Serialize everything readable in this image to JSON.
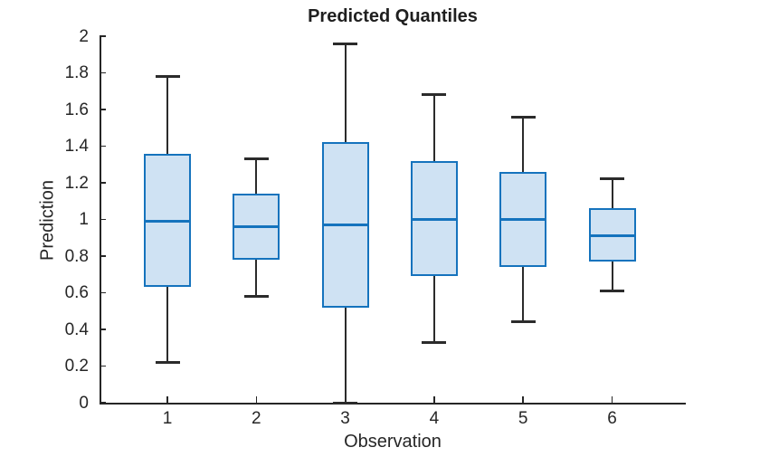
{
  "chart_data": {
    "type": "box",
    "title": "Predicted Quantiles",
    "xlabel": "Observation",
    "ylabel": "Prediction",
    "categories": [
      "1",
      "2",
      "3",
      "4",
      "5",
      "6"
    ],
    "ylim": [
      0,
      2
    ],
    "yticks": [
      {
        "value": 0,
        "label": "0"
      },
      {
        "value": 0.2,
        "label": "0.2"
      },
      {
        "value": 0.4,
        "label": "0.4"
      },
      {
        "value": 0.6,
        "label": "0.6"
      },
      {
        "value": 0.8,
        "label": "0.8"
      },
      {
        "value": 1,
        "label": "1"
      },
      {
        "value": 1.2,
        "label": "1.2"
      },
      {
        "value": 1.4,
        "label": "1.4"
      },
      {
        "value": 1.6,
        "label": "1.6"
      },
      {
        "value": 1.8,
        "label": "1.8"
      },
      {
        "value": 2,
        "label": "2"
      }
    ],
    "grid": false,
    "legend_position": "none",
    "boxes": [
      {
        "observation": "1",
        "whisker_low": 0.22,
        "q1": 0.63,
        "median": 0.99,
        "q3": 1.36,
        "whisker_high": 1.78
      },
      {
        "observation": "2",
        "whisker_low": 0.58,
        "q1": 0.78,
        "median": 0.96,
        "q3": 1.14,
        "whisker_high": 1.33
      },
      {
        "observation": "3",
        "whisker_low": 0.0,
        "q1": 0.52,
        "median": 0.97,
        "q3": 1.42,
        "whisker_high": 1.96
      },
      {
        "observation": "4",
        "whisker_low": 0.33,
        "q1": 0.69,
        "median": 1.0,
        "q3": 1.32,
        "whisker_high": 1.68
      },
      {
        "observation": "5",
        "whisker_low": 0.44,
        "q1": 0.74,
        "median": 1.0,
        "q3": 1.26,
        "whisker_high": 1.56
      },
      {
        "observation": "6",
        "whisker_low": 0.61,
        "q1": 0.77,
        "median": 0.91,
        "q3": 1.06,
        "whisker_high": 1.22
      }
    ],
    "colors": {
      "box_edge": "#1573bd",
      "box_fill": "#cfe2f3",
      "median": "#1573bd",
      "whisker": "#2b2b2b",
      "axis": "#262626",
      "text": "#262626",
      "title": "#1f1f1f",
      "background": "#ffffff"
    }
  }
}
